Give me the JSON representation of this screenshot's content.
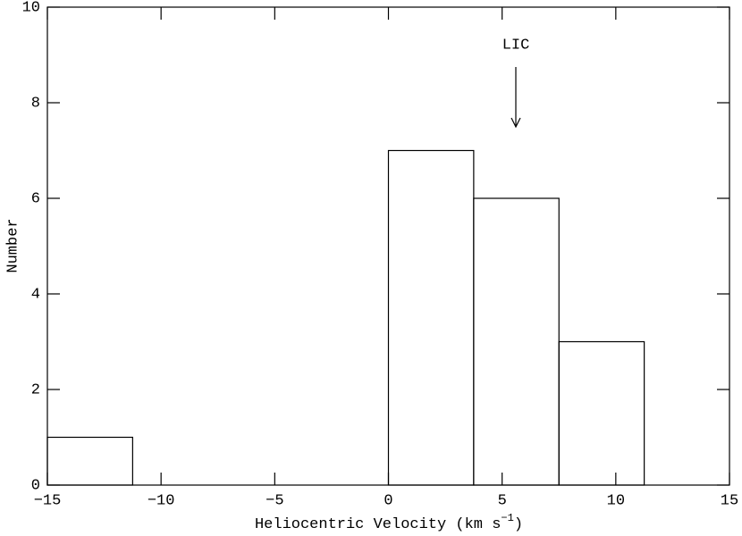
{
  "chart_data": {
    "type": "histogram",
    "xlabel": "Heliocentric Velocity (km s",
    "xlabel_exponent": "−1",
    "xlabel_end": ")",
    "ylabel": "Number",
    "annotation": "LIC",
    "bins": [
      -15,
      -11.25,
      -7.5,
      -3.75,
      0,
      3.75,
      7.5,
      11.25,
      15
    ],
    "counts": [
      1,
      0,
      0,
      0,
      7,
      6,
      3,
      0
    ],
    "color": "#000000",
    "xlim": [
      -15,
      15
    ],
    "ylim": [
      0,
      10
    ],
    "xticks": [
      {
        "value": -15,
        "label": "−15"
      },
      {
        "value": -10,
        "label": "−10"
      },
      {
        "value": -5,
        "label": "−5"
      },
      0,
      5,
      10,
      15
    ],
    "yticks": [
      0,
      2,
      4,
      6,
      8,
      10
    ],
    "grid": false
  }
}
